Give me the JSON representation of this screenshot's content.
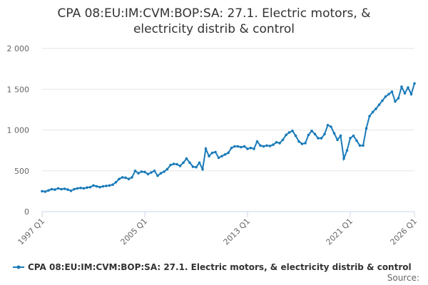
{
  "chart_data": {
    "type": "line",
    "title": "CPA 08:EU:IM:CVM:BOP:SA: 27.1. Electric motors, & electricity distrib & control",
    "source_label": "Source:",
    "categories": [
      "1997 Q1",
      null,
      null,
      null,
      null,
      null,
      null,
      null,
      null,
      null,
      null,
      null,
      null,
      null,
      null,
      null,
      null,
      null,
      null,
      null,
      null,
      null,
      null,
      null,
      null,
      null,
      null,
      null,
      null,
      null,
      null,
      null,
      "2005 Q1",
      null,
      null,
      null,
      null,
      null,
      null,
      null,
      null,
      null,
      null,
      null,
      null,
      null,
      null,
      null,
      null,
      null,
      null,
      null,
      null,
      null,
      null,
      null,
      null,
      null,
      null,
      null,
      null,
      null,
      null,
      null,
      "2013 Q1",
      null,
      null,
      null,
      null,
      null,
      null,
      null,
      null,
      null,
      null,
      null,
      null,
      null,
      null,
      null,
      null,
      null,
      null,
      null,
      null,
      null,
      null,
      null,
      null,
      null,
      null,
      null,
      null,
      null,
      null,
      null,
      "2021 Q1",
      null,
      null,
      null,
      null,
      null,
      null,
      null,
      null,
      null,
      null,
      null,
      null,
      null,
      null,
      null,
      null,
      null,
      null,
      null,
      "2026 Q1"
    ],
    "series": [
      {
        "name": "CPA 08:EU:IM:CVM:BOP:SA: 27.1. Electric motors, & electricity distrib & control",
        "color": "#1a7bb9",
        "values": [
          250,
          245,
          260,
          275,
          270,
          285,
          275,
          280,
          270,
          255,
          275,
          285,
          290,
          285,
          295,
          300,
          320,
          310,
          300,
          310,
          315,
          320,
          330,
          360,
          400,
          420,
          415,
          400,
          420,
          500,
          470,
          490,
          485,
          460,
          480,
          500,
          440,
          470,
          490,
          520,
          570,
          585,
          580,
          560,
          600,
          650,
          600,
          550,
          545,
          600,
          520,
          770,
          680,
          720,
          730,
          660,
          680,
          700,
          720,
          780,
          800,
          800,
          790,
          800,
          770,
          780,
          770,
          860,
          810,
          800,
          810,
          805,
          820,
          850,
          840,
          880,
          940,
          970,
          990,
          930,
          860,
          830,
          840,
          940,
          990,
          950,
          900,
          900,
          950,
          1060,
          1040,
          960,
          880,
          930,
          650,
          750,
          900,
          930,
          870,
          810,
          810,
          1020,
          1170,
          1220,
          1260,
          1310,
          1360,
          1410,
          1440,
          1470,
          1350,
          1390,
          1530,
          1450,
          1520,
          1440,
          1570
        ]
      }
    ],
    "ylim": [
      0,
      2000
    ],
    "yticks": [
      0,
      500,
      {
        "value": 1000,
        "label": "1 000"
      },
      {
        "value": 1500,
        "label": "1 500"
      },
      {
        "value": 2000,
        "label": "2 000"
      }
    ],
    "grid": true
  }
}
